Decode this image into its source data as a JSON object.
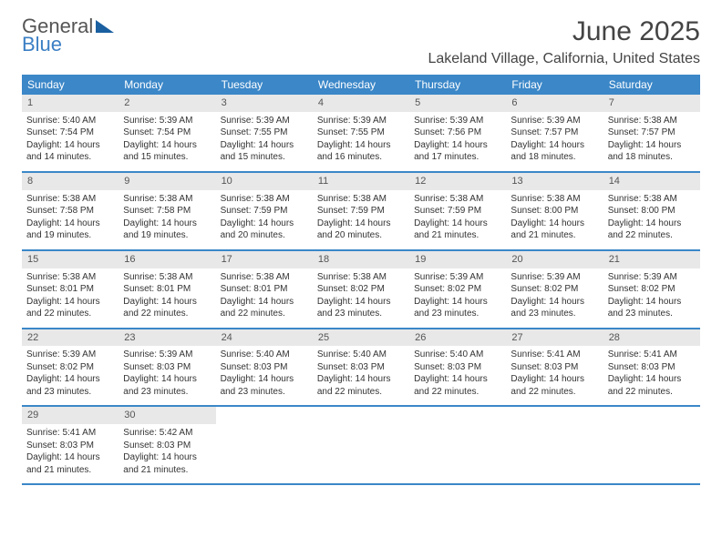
{
  "logo": {
    "line1": "General",
    "line2": "Blue"
  },
  "title": "June 2025",
  "location": "Lakeland Village, California, United States",
  "colors": {
    "header_bg": "#3b87c8",
    "daynum_bg": "#e8e8e8",
    "logo_gray": "#555555",
    "logo_blue": "#3b7fc4"
  },
  "weekdays": [
    "Sunday",
    "Monday",
    "Tuesday",
    "Wednesday",
    "Thursday",
    "Friday",
    "Saturday"
  ],
  "weeks": [
    [
      {
        "n": "1",
        "sr": "5:40 AM",
        "ss": "7:54 PM",
        "dl": "14 hours and 14 minutes."
      },
      {
        "n": "2",
        "sr": "5:39 AM",
        "ss": "7:54 PM",
        "dl": "14 hours and 15 minutes."
      },
      {
        "n": "3",
        "sr": "5:39 AM",
        "ss": "7:55 PM",
        "dl": "14 hours and 15 minutes."
      },
      {
        "n": "4",
        "sr": "5:39 AM",
        "ss": "7:55 PM",
        "dl": "14 hours and 16 minutes."
      },
      {
        "n": "5",
        "sr": "5:39 AM",
        "ss": "7:56 PM",
        "dl": "14 hours and 17 minutes."
      },
      {
        "n": "6",
        "sr": "5:39 AM",
        "ss": "7:57 PM",
        "dl": "14 hours and 18 minutes."
      },
      {
        "n": "7",
        "sr": "5:38 AM",
        "ss": "7:57 PM",
        "dl": "14 hours and 18 minutes."
      }
    ],
    [
      {
        "n": "8",
        "sr": "5:38 AM",
        "ss": "7:58 PM",
        "dl": "14 hours and 19 minutes."
      },
      {
        "n": "9",
        "sr": "5:38 AM",
        "ss": "7:58 PM",
        "dl": "14 hours and 19 minutes."
      },
      {
        "n": "10",
        "sr": "5:38 AM",
        "ss": "7:59 PM",
        "dl": "14 hours and 20 minutes."
      },
      {
        "n": "11",
        "sr": "5:38 AM",
        "ss": "7:59 PM",
        "dl": "14 hours and 20 minutes."
      },
      {
        "n": "12",
        "sr": "5:38 AM",
        "ss": "7:59 PM",
        "dl": "14 hours and 21 minutes."
      },
      {
        "n": "13",
        "sr": "5:38 AM",
        "ss": "8:00 PM",
        "dl": "14 hours and 21 minutes."
      },
      {
        "n": "14",
        "sr": "5:38 AM",
        "ss": "8:00 PM",
        "dl": "14 hours and 22 minutes."
      }
    ],
    [
      {
        "n": "15",
        "sr": "5:38 AM",
        "ss": "8:01 PM",
        "dl": "14 hours and 22 minutes."
      },
      {
        "n": "16",
        "sr": "5:38 AM",
        "ss": "8:01 PM",
        "dl": "14 hours and 22 minutes."
      },
      {
        "n": "17",
        "sr": "5:38 AM",
        "ss": "8:01 PM",
        "dl": "14 hours and 22 minutes."
      },
      {
        "n": "18",
        "sr": "5:38 AM",
        "ss": "8:02 PM",
        "dl": "14 hours and 23 minutes."
      },
      {
        "n": "19",
        "sr": "5:39 AM",
        "ss": "8:02 PM",
        "dl": "14 hours and 23 minutes."
      },
      {
        "n": "20",
        "sr": "5:39 AM",
        "ss": "8:02 PM",
        "dl": "14 hours and 23 minutes."
      },
      {
        "n": "21",
        "sr": "5:39 AM",
        "ss": "8:02 PM",
        "dl": "14 hours and 23 minutes."
      }
    ],
    [
      {
        "n": "22",
        "sr": "5:39 AM",
        "ss": "8:02 PM",
        "dl": "14 hours and 23 minutes."
      },
      {
        "n": "23",
        "sr": "5:39 AM",
        "ss": "8:03 PM",
        "dl": "14 hours and 23 minutes."
      },
      {
        "n": "24",
        "sr": "5:40 AM",
        "ss": "8:03 PM",
        "dl": "14 hours and 23 minutes."
      },
      {
        "n": "25",
        "sr": "5:40 AM",
        "ss": "8:03 PM",
        "dl": "14 hours and 22 minutes."
      },
      {
        "n": "26",
        "sr": "5:40 AM",
        "ss": "8:03 PM",
        "dl": "14 hours and 22 minutes."
      },
      {
        "n": "27",
        "sr": "5:41 AM",
        "ss": "8:03 PM",
        "dl": "14 hours and 22 minutes."
      },
      {
        "n": "28",
        "sr": "5:41 AM",
        "ss": "8:03 PM",
        "dl": "14 hours and 22 minutes."
      }
    ],
    [
      {
        "n": "29",
        "sr": "5:41 AM",
        "ss": "8:03 PM",
        "dl": "14 hours and 21 minutes."
      },
      {
        "n": "30",
        "sr": "5:42 AM",
        "ss": "8:03 PM",
        "dl": "14 hours and 21 minutes."
      },
      null,
      null,
      null,
      null,
      null
    ]
  ],
  "labels": {
    "sunrise": "Sunrise: ",
    "sunset": "Sunset: ",
    "daylight": "Daylight: "
  }
}
